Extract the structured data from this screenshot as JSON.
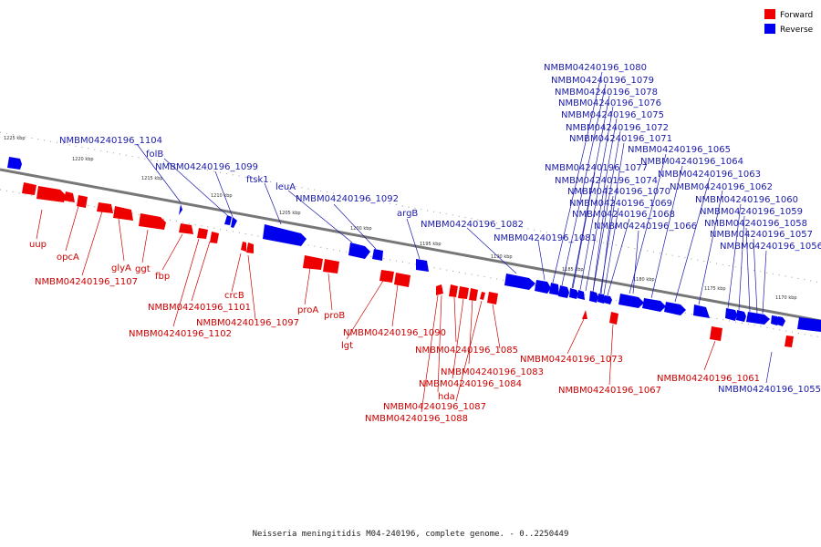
{
  "caption": "Neisseria meningitidis M04-240196, complete genome. - 0..2250449",
  "legend": {
    "forward": {
      "label": "Forward",
      "color": "#ee0000"
    },
    "reverse": {
      "label": "Reverse",
      "color": "#0000ee"
    }
  },
  "kbp_marks": [
    "1225 kbp",
    "1220 kbp",
    "1215 kbp",
    "1210 kbp",
    "1205 kbp",
    "1200 kbp",
    "1195 kbp",
    "1190 kbp",
    "1185 kbp",
    "1180 kbp",
    "1175 kbp",
    "1170 kbp"
  ],
  "reverse_genes": [
    "NMBM04240196_1104",
    "folB",
    "NMBM04240196_1099",
    "ftsk1",
    "leuA",
    "NMBM04240196_1092",
    "argB",
    "NMBM04240196_1082",
    "NMBM04240196_1081",
    "NMBM04240196_1080",
    "NMBM04240196_1079",
    "NMBM04240196_1078",
    "NMBM04240196_1076",
    "NMBM04240196_1075",
    "NMBM04240196_1072",
    "NMBM04240196_1071",
    "NMBM04240196_1065",
    "NMBM04240196_1064",
    "NMBM04240196_1077",
    "NMBM04240196_1074",
    "NMBM04240196_1063",
    "NMBM04240196_1070",
    "NMBM04240196_1062",
    "NMBM04240196_1069",
    "NMBM04240196_1060",
    "NMBM04240196_1068",
    "NMBM04240196_1059",
    "NMBM04240196_1066",
    "NMBM04240196_1058",
    "NMBM04240196_1057",
    "NMBM04240196_1056",
    "NMBM04240196_1055"
  ],
  "forward_genes": [
    "uup",
    "opcA",
    "glyA",
    "ggt",
    "fbp",
    "NMBM04240196_1107",
    "crcB",
    "NMBM04240196_1101",
    "NMBM04240196_1102",
    "NMBM04240196_1097",
    "proA",
    "proB",
    "lgt",
    "NMBM04240196_1090",
    "NMBM04240196_1085",
    "NMBM04240196_1083",
    "NMBM04240196_1084",
    "hda",
    "NMBM04240196_1087",
    "NMBM04240196_1088",
    "NMBM04240196_1073",
    "NMBM04240196_1067",
    "NMBM04240196_1061"
  ]
}
